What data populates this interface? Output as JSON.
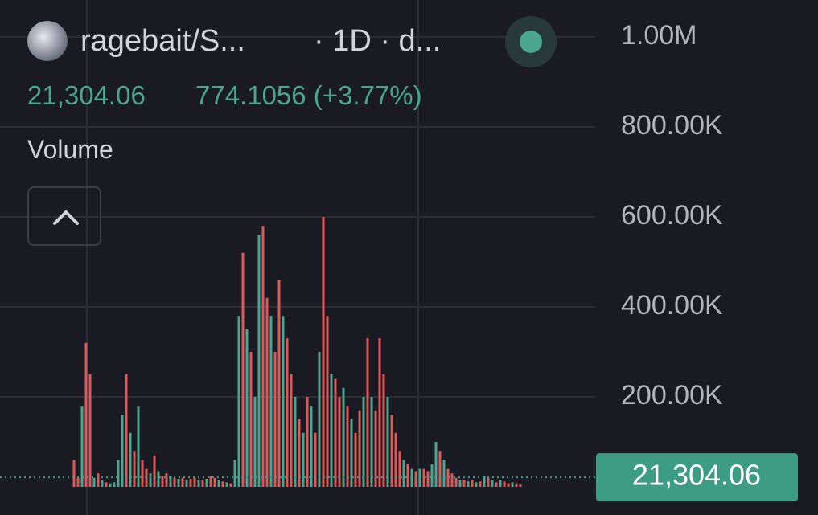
{
  "chart_data": {
    "type": "bar",
    "title": "ragebait/S...",
    "subtitle": "· 1D · d...",
    "change": "774.1056 (+3.77%)",
    "indicator": "Volume",
    "ylim": [
      0,
      1082000
    ],
    "yticks": [
      {
        "value": 200000,
        "label": "200.00K"
      },
      {
        "value": 400000,
        "label": "400.00K"
      },
      {
        "value": 600000,
        "label": "600.00K"
      },
      {
        "value": 800000,
        "label": "800.00K"
      },
      {
        "value": 1000000,
        "label": "1.00M"
      }
    ],
    "grid": true,
    "last_value": {
      "value": 21304.06,
      "label": "21,304.06"
    },
    "last_color": "#3d9c84",
    "values": [
      60000,
      20000,
      180000,
      320000,
      250000,
      20000,
      30000,
      15000,
      10000,
      8000,
      10000,
      60000,
      160000,
      250000,
      120000,
      80000,
      180000,
      60000,
      40000,
      30000,
      70000,
      35000,
      25000,
      30000,
      25000,
      20000,
      18000,
      20000,
      15000,
      18000,
      20000,
      15000,
      15000,
      18000,
      25000,
      20000,
      15000,
      12000,
      10000,
      8000,
      60000,
      380000,
      520000,
      350000,
      300000,
      200000,
      560000,
      580000,
      420000,
      380000,
      300000,
      460000,
      380000,
      330000,
      250000,
      200000,
      150000,
      120000,
      200000,
      180000,
      120000,
      300000,
      600000,
      380000,
      250000,
      240000,
      200000,
      220000,
      180000,
      150000,
      120000,
      170000,
      200000,
      330000,
      200000,
      170000,
      330000,
      250000,
      200000,
      160000,
      120000,
      80000,
      60000,
      50000,
      40000,
      35000,
      40000,
      40000,
      35000,
      50000,
      100000,
      80000,
      60000,
      40000,
      30000,
      20000,
      15000,
      15000,
      12000,
      15000,
      10000,
      12000,
      25000,
      20000,
      15000,
      10000,
      15000,
      12000,
      8000,
      10000,
      8000,
      5000
    ],
    "colors": [
      "#e0575a",
      "#e0575a",
      "#4aa68f",
      "#e0575a",
      "#e0575a",
      "#4aa68f",
      "#e0575a",
      "#4aa68f",
      "#e0575a",
      "#4aa68f",
      "#4aa68f",
      "#4aa68f",
      "#4aa68f",
      "#e0575a",
      "#4aa68f",
      "#e0575a",
      "#4aa68f",
      "#e0575a",
      "#e0575a",
      "#4aa68f",
      "#e0575a",
      "#4aa68f",
      "#e0575a",
      "#e0575a",
      "#4aa68f",
      "#e0575a",
      "#4aa68f",
      "#e0575a",
      "#4aa68f",
      "#e0575a",
      "#e0575a",
      "#4aa68f",
      "#e0575a",
      "#4aa68f",
      "#e0575a",
      "#e0575a",
      "#4aa68f",
      "#e0575a",
      "#4aa68f",
      "#e0575a",
      "#4aa68f",
      "#4aa68f",
      "#e0575a",
      "#4aa68f",
      "#e0575a",
      "#4aa68f",
      "#4aa68f",
      "#e0575a",
      "#e0575a",
      "#4aa68f",
      "#e0575a",
      "#e0575a",
      "#4aa68f",
      "#e0575a",
      "#e0575a",
      "#4aa68f",
      "#e0575a",
      "#4aa68f",
      "#e0575a",
      "#4aa68f",
      "#e0575a",
      "#4aa68f",
      "#e0575a",
      "#e0575a",
      "#4aa68f",
      "#e0575a",
      "#e0575a",
      "#4aa68f",
      "#e0575a",
      "#4aa68f",
      "#e0575a",
      "#e0575a",
      "#4aa68f",
      "#e0575a",
      "#4aa68f",
      "#e0575a",
      "#e0575a",
      "#e0575a",
      "#4aa68f",
      "#e0575a",
      "#e0575a",
      "#e0575a",
      "#4aa68f",
      "#e0575a",
      "#4aa68f",
      "#e0575a",
      "#4aa68f",
      "#e0575a",
      "#e0575a",
      "#4aa68f",
      "#4aa68f",
      "#e0575a",
      "#4aa68f",
      "#e0575a",
      "#e0575a",
      "#e0575a",
      "#4aa68f",
      "#e0575a",
      "#4aa68f",
      "#e0575a",
      "#4aa68f",
      "#e0575a",
      "#4aa68f",
      "#e0575a",
      "#4aa68f",
      "#e0575a",
      "#4aa68f",
      "#e0575a",
      "#e0575a",
      "#4aa68f",
      "#e0575a",
      "#e0575a"
    ]
  }
}
